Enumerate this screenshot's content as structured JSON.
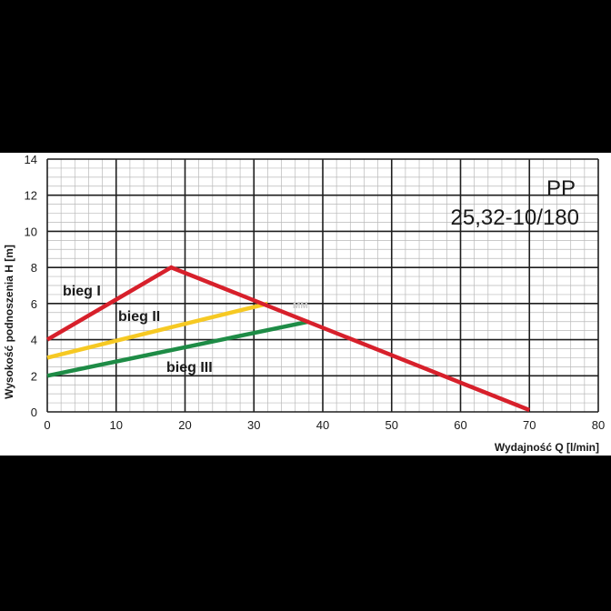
{
  "chart_data": {
    "type": "line",
    "title_line1": "PP",
    "title_line2": "25,32-10/180",
    "xlabel": "Wydajność Q [l/min]",
    "ylabel": "Wysokość podnoszenia H [m]",
    "xlim": [
      0,
      80
    ],
    "ylim": [
      0,
      14
    ],
    "x_ticks": [
      "0",
      "10",
      "20",
      "30",
      "40",
      "50",
      "60",
      "70",
      "80"
    ],
    "y_ticks": [
      "0",
      "2",
      "4",
      "6",
      "8",
      "10",
      "12",
      "14"
    ],
    "grid": true,
    "watermark": "MM",
    "series": [
      {
        "name": "bieg I",
        "color": "#d7202b",
        "x": [
          0,
          18,
          70
        ],
        "y": [
          4,
          8,
          0.1
        ]
      },
      {
        "name": "bieg II",
        "color": "#f6c923",
        "x": [
          0,
          32
        ],
        "y": [
          3,
          6
        ]
      },
      {
        "name": "bieg III",
        "color": "#1e8c46",
        "x": [
          0,
          38
        ],
        "y": [
          2,
          5
        ]
      }
    ]
  }
}
